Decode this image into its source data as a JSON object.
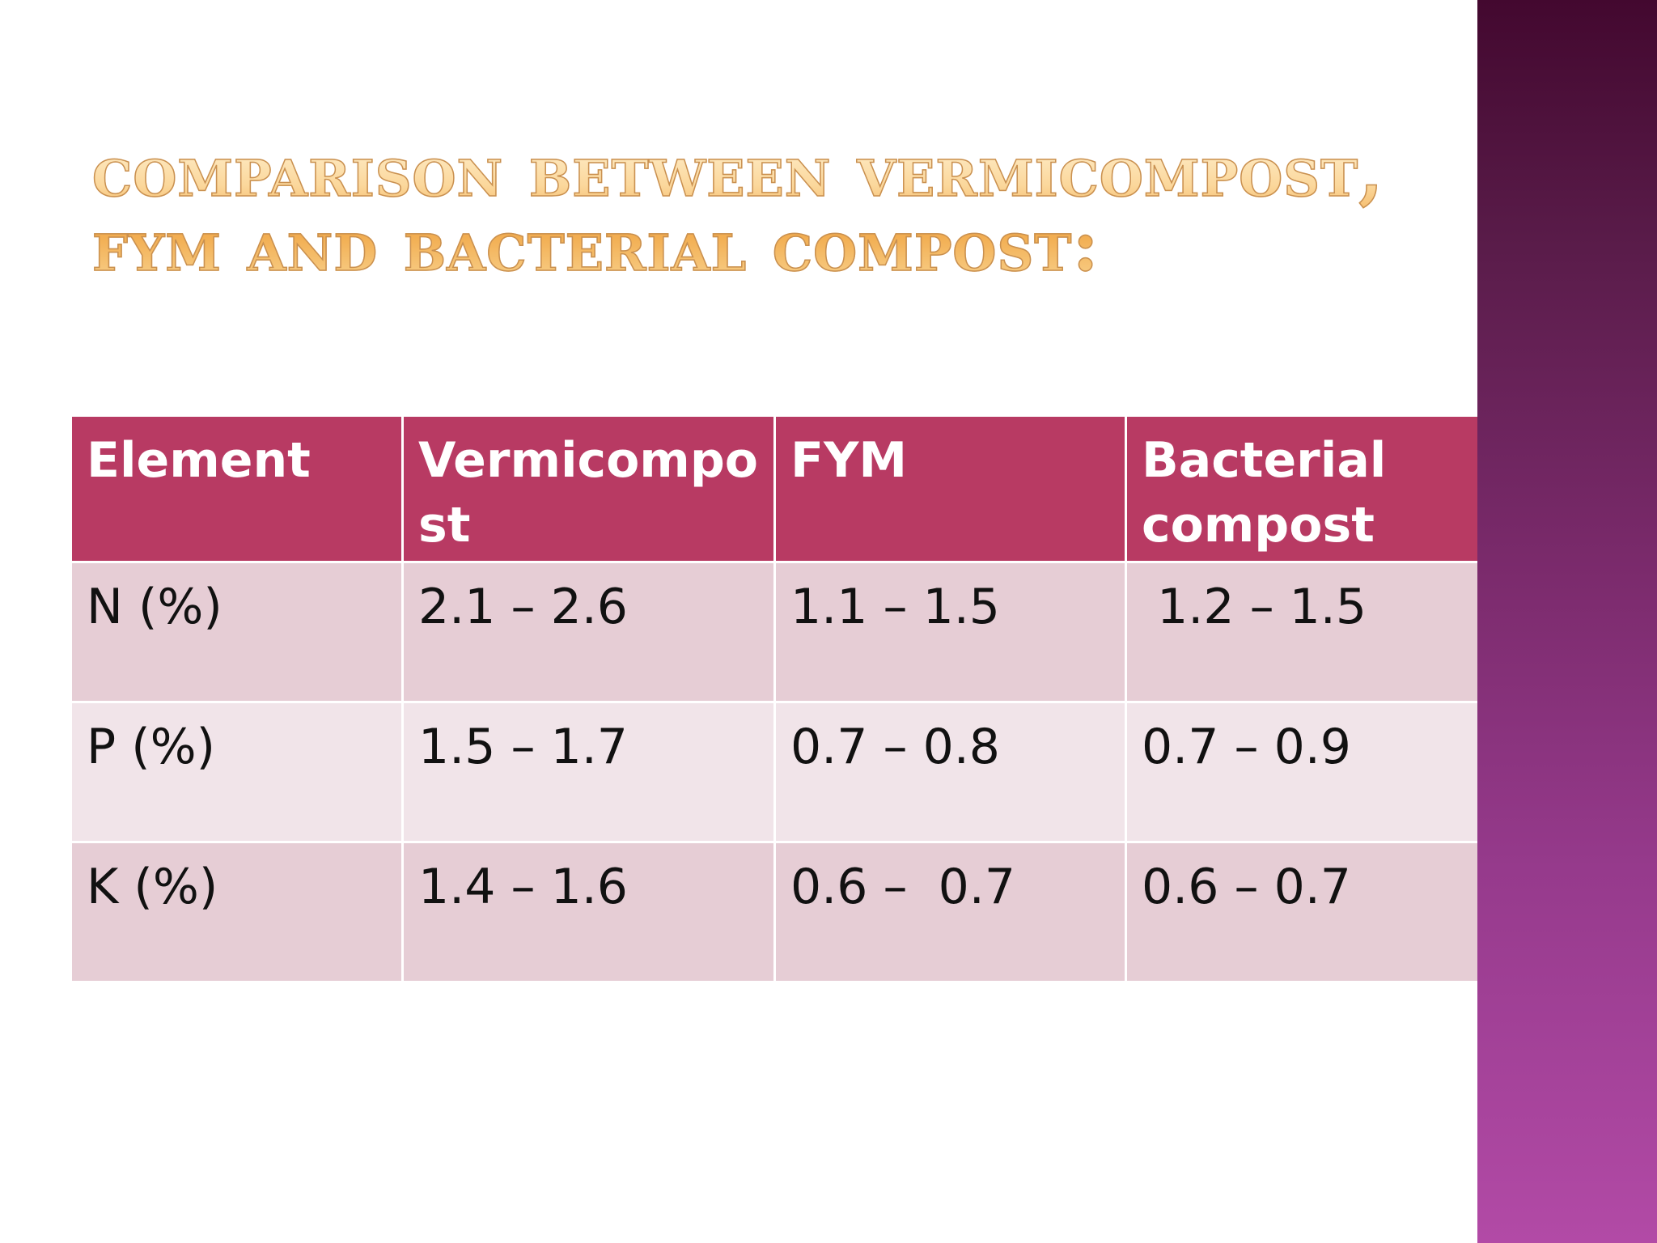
{
  "slide": {
    "title_line1": "Comparison between Vermicompost,",
    "title_line2": "FYM and Bacterial compost:"
  },
  "table": {
    "headers": [
      "Element",
      "Vermicompo st",
      "FYM",
      "Bacterial compost"
    ],
    "rows": [
      [
        "N (%)",
        "2.1 – 2.6",
        "1.1 – 1.5",
        " 1.2 – 1.5"
      ],
      [
        "P (%)",
        "1.5 – 1.7",
        "0.7 – 0.8",
        "0.7 – 0.9"
      ],
      [
        "K (%)",
        "1.4 – 1.6",
        "0.6 –  0.7",
        "0.6 – 0.7"
      ]
    ]
  },
  "colors": {
    "header_bg": "#b83a63",
    "row_odd_bg": "#e6cdd5",
    "row_even_bg": "#f1e4e9",
    "title_color": "#f5c27a",
    "side_bar_top": "#43082f",
    "side_bar_bottom": "#b24aa6"
  }
}
